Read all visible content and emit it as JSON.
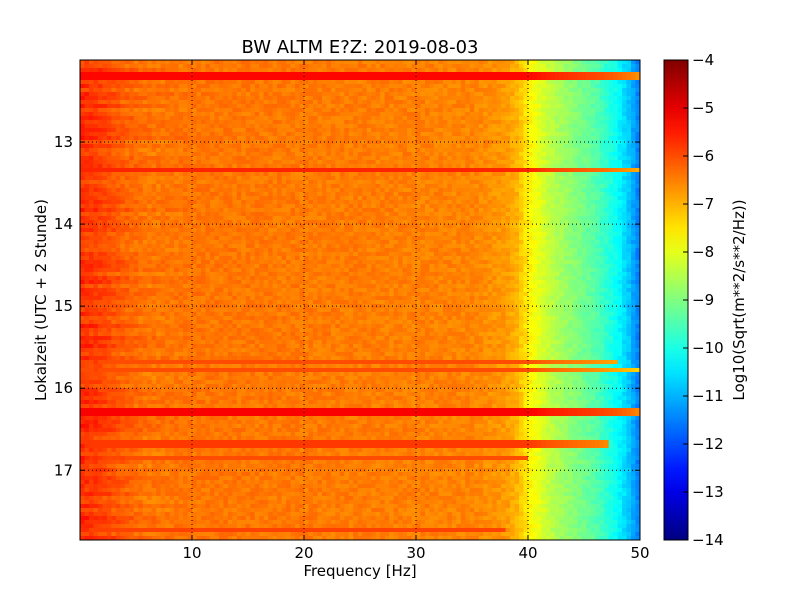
{
  "chart_data": {
    "type": "heatmap",
    "title": "BW ALTM E?Z: 2019-08-03",
    "xlabel": "Frequency [Hz]",
    "ylabel": "Lokalzeit (UTC + 2 Stunde)",
    "xlim": [
      0,
      50
    ],
    "ylim": [
      12.0,
      17.85
    ],
    "y_inverted": true,
    "grid": true,
    "x_ticks": [
      10,
      20,
      30,
      40,
      50
    ],
    "y_ticks": [
      13,
      14,
      15,
      16,
      17
    ],
    "colormap": "jet",
    "colorbar": {
      "label": "Log10(Sqrt(m**2/s**2/Hz))",
      "range": [
        -14,
        -4
      ],
      "ticks": [
        -4,
        -5,
        -6,
        -7,
        -8,
        -9,
        -10,
        -11,
        -12,
        -13,
        -14
      ]
    },
    "spectral_profile": {
      "frequency_hz": [
        0,
        2,
        4,
        6,
        10,
        20,
        30,
        35,
        38,
        39,
        40,
        41,
        42,
        44,
        46,
        48,
        49,
        50
      ],
      "log10_psd": [
        -5.7,
        -5.9,
        -6.2,
        -6.4,
        -6.4,
        -6.45,
        -6.5,
        -6.55,
        -6.75,
        -7.0,
        -7.6,
        -8.0,
        -8.4,
        -8.9,
        -9.4,
        -10.2,
        -10.8,
        -11.6
      ]
    },
    "horizontal_bands": [
      {
        "time": 12.2,
        "log10_psd": -5.3,
        "f_max_hz": 50
      },
      {
        "time": 13.35,
        "log10_psd": -5.6,
        "f_max_hz": 50
      },
      {
        "time": 15.68,
        "log10_psd": -6.0,
        "f_max_hz": 48
      },
      {
        "time": 15.78,
        "log10_psd": -6.0,
        "f_max_hz": 50
      },
      {
        "time": 16.28,
        "log10_psd": -5.2,
        "f_max_hz": 50
      },
      {
        "time": 16.68,
        "log10_psd": -5.8,
        "f_max_hz": 47
      },
      {
        "time": 16.85,
        "log10_psd": -6.0,
        "f_max_hz": 40
      },
      {
        "time": 17.72,
        "log10_psd": -5.9,
        "f_max_hz": 38
      }
    ]
  }
}
